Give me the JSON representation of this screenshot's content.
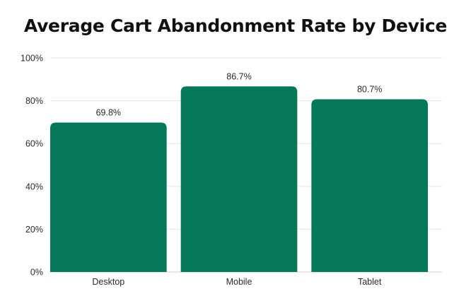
{
  "chart_data": {
    "type": "bar",
    "title": "Average Cart Abandonment Rate by Device",
    "categories": [
      "Desktop",
      "Mobile",
      "Tablet"
    ],
    "values": [
      69.8,
      86.7,
      80.7
    ],
    "data_labels": [
      "69.8%",
      "86.7%",
      "80.7%"
    ],
    "xlabel": "",
    "ylabel": "",
    "ylim": [
      0,
      100
    ],
    "y_ticks": [
      0,
      20,
      40,
      60,
      80,
      100
    ],
    "y_tick_labels": [
      "0%",
      "20%",
      "40%",
      "60%",
      "80%",
      "100%"
    ],
    "grid": true,
    "legend": "none",
    "bar_color": "#06785a"
  }
}
